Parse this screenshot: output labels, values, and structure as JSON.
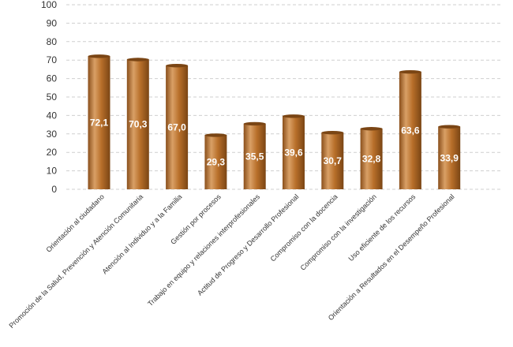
{
  "chart_data": {
    "type": "bar",
    "categories": [
      "Orientación al ciudadano",
      "Promoción de la Salud, Prevención y Atención Comunitaria",
      "Atención al Individuo y a la Familia",
      "Gestión por procesos",
      "Trabajo en equipo y relaciones interprofesionales",
      "Actitud de Progreso y Desarrollo Profesional",
      "Compromiso con la docencia",
      "Compromiso con la investigación",
      "Uso eficiente de los recursos",
      "Orientación a Resultados en el Desempeño Profesional"
    ],
    "values": [
      72.1,
      70.3,
      67.0,
      29.3,
      35.5,
      39.6,
      30.7,
      32.8,
      63.6,
      33.9
    ],
    "value_labels": [
      "72,1",
      "70,3",
      "67,0",
      "29,3",
      "35,5",
      "39,6",
      "30,7",
      "32,8",
      "63,6",
      "33,9"
    ],
    "yticks": [
      0,
      10,
      20,
      30,
      40,
      50,
      60,
      70,
      80,
      90,
      100
    ],
    "ylim": [
      0,
      100
    ],
    "title": "",
    "xlabel": "",
    "ylabel": "",
    "grid": true,
    "legend": "none",
    "bar_color": "#b86f2a",
    "bar_highlight": "#d9a066",
    "bar_shadow": "#7a4514"
  }
}
